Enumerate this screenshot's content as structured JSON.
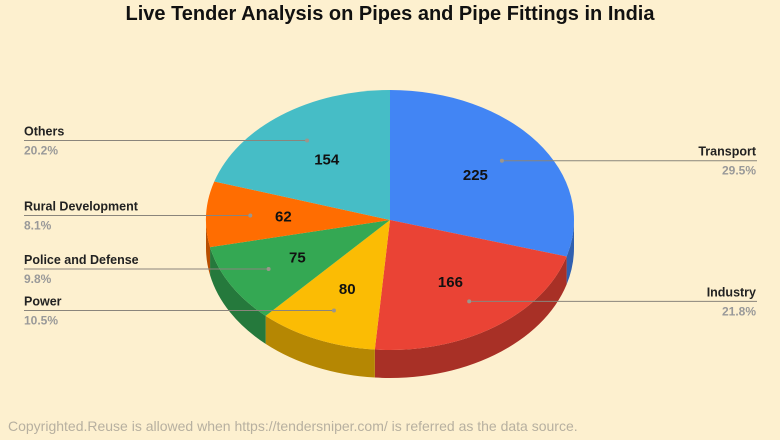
{
  "chart_data": {
    "type": "pie",
    "style": "3d",
    "title": "Live Tender Analysis on Pipes and Pipe Fittings in India",
    "slices": [
      {
        "label": "Transport",
        "value": 225,
        "percent": "29.5%",
        "color": "#4285f4",
        "side": "right"
      },
      {
        "label": "Industry",
        "value": 166,
        "percent": "21.8%",
        "color": "#ea4335",
        "side": "right"
      },
      {
        "label": "Power",
        "value": 80,
        "percent": "10.5%",
        "color": "#fbbc04",
        "side": "left"
      },
      {
        "label": "Police and Defense",
        "value": 75,
        "percent": "9.8%",
        "color": "#34a853",
        "side": "left"
      },
      {
        "label": "Rural Development",
        "value": 62,
        "percent": "8.1%",
        "color": "#ff6d01",
        "side": "left"
      },
      {
        "label": "Others",
        "value": 154,
        "percent": "20.2%",
        "color": "#46bdc6",
        "side": "left"
      }
    ]
  },
  "footer": "Copyrighted.Reuse is allowed when https://tendersniper.com/ is referred as the data source."
}
